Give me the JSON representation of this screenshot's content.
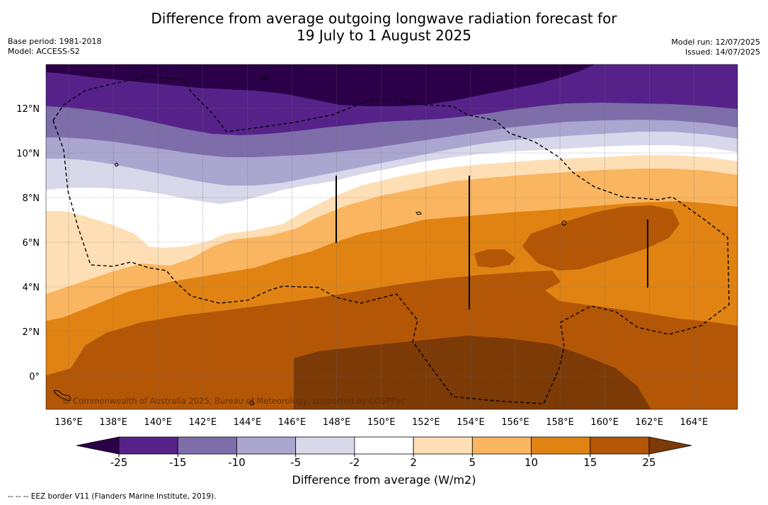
{
  "title_line1": "Difference from average outgoing longwave radiation forecast for",
  "title_line2": "19 July to 1 August 2025",
  "meta": {
    "base_period": "Base period: 1981-2018",
    "model": "Model: ACCESS-S2",
    "model_run": "Model run: 12/07/2025",
    "issued": "Issued: 14/07/2025"
  },
  "map": {
    "lon_labels": [
      "136°E",
      "138°E",
      "140°E",
      "142°E",
      "144°E",
      "146°E",
      "148°E",
      "150°E",
      "152°E",
      "154°E",
      "156°E",
      "158°E",
      "160°E",
      "162°E",
      "164°E"
    ],
    "lat_labels": [
      "12°N",
      "10°N",
      "8°N",
      "6°N",
      "4°N",
      "2°N",
      "0°"
    ],
    "copyright": "© Commonwealth of Australia 2025, Bureau of Meteorology, supported by COSPPac"
  },
  "colorbar": {
    "labels": [
      "-25",
      "-15",
      "-10",
      "-5",
      "-2",
      "2",
      "5",
      "10",
      "15",
      "25"
    ],
    "colors": [
      "#2b0049",
      "#56228a",
      "#7d6ea9",
      "#aba6cf",
      "#d8d8ea",
      "#ffffff",
      "#fedfb5",
      "#f9b560",
      "#e08313",
      "#b35606",
      "#7c3a07"
    ],
    "title": "Difference from average (W/m2)"
  },
  "footer": "--  --  -- EEZ border V11 (Flanders Marine Institute, 2019)."
}
